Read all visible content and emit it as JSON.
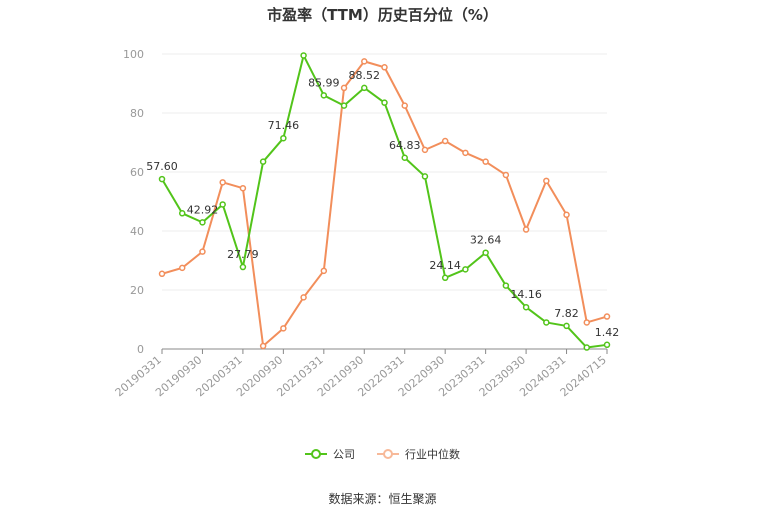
{
  "chart_data": {
    "type": "line",
    "title": "市盈率（TTM）历史百分位（%）",
    "ylim": [
      0,
      100
    ],
    "yticks": [
      0,
      20,
      40,
      60,
      80,
      100
    ],
    "x_tick_labels": [
      "20190331",
      "20190930",
      "20200331",
      "20200930",
      "20210331",
      "20210930",
      "20220331",
      "20220930",
      "20230331",
      "20230930",
      "20240331",
      "20240715"
    ],
    "grid": true,
    "legend_position": "bottom",
    "series": [
      {
        "name": "公司",
        "color": "#52c41a",
        "values": [
          57.6,
          46.0,
          42.92,
          49.0,
          27.79,
          63.5,
          71.46,
          99.5,
          85.99,
          82.5,
          88.52,
          83.5,
          64.83,
          58.5,
          24.14,
          27.0,
          32.64,
          21.5,
          14.16,
          9.0,
          7.82,
          0.5,
          1.42
        ],
        "labels": {
          "0": "57.60",
          "2": "42.92",
          "4": "27.79",
          "6": "71.46",
          "8": "85.99",
          "10": "88.52",
          "12": "64.83",
          "14": "24.14",
          "16": "32.64",
          "18": "14.16",
          "20": "7.82",
          "22": "1.42"
        }
      },
      {
        "name": "行业中位数",
        "color": "#f28e5b",
        "values": [
          25.5,
          27.5,
          33.0,
          56.5,
          54.5,
          1.0,
          7.0,
          17.5,
          26.5,
          88.5,
          97.5,
          95.5,
          82.5,
          67.5,
          70.5,
          66.5,
          63.5,
          59.0,
          40.5,
          57.0,
          45.5,
          9.0,
          11.0
        ]
      }
    ]
  },
  "source": "数据来源：恒生聚源"
}
